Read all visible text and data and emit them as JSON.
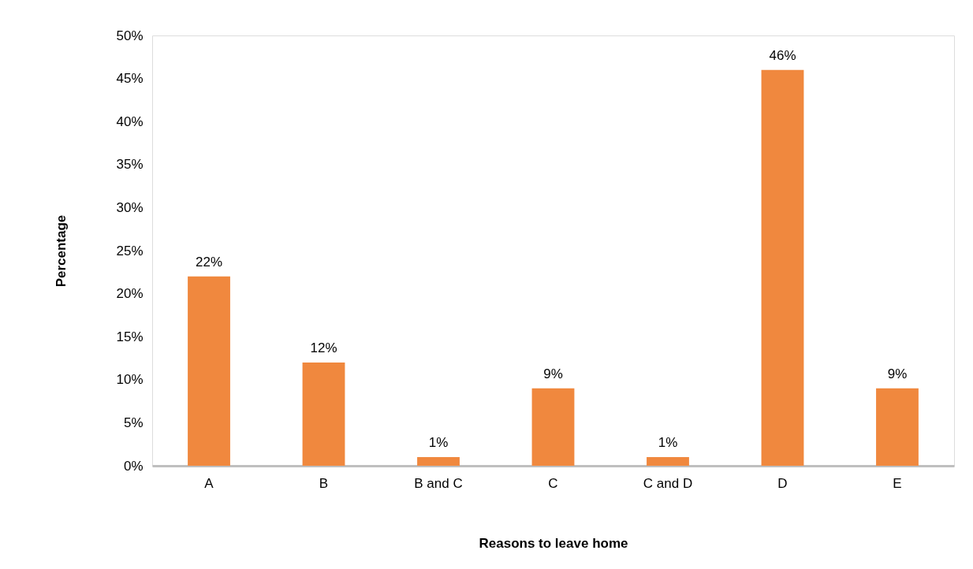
{
  "chart_data": {
    "type": "bar",
    "xlabel": "Reasons to leave home",
    "ylabel": "Percentage",
    "categories": [
      "A",
      "B",
      "B and C",
      "C",
      "C and D",
      "D",
      "E"
    ],
    "values": [
      22,
      12,
      1,
      9,
      1,
      46,
      9
    ],
    "value_labels": [
      "22%",
      "12%",
      "1%",
      "9%",
      "1%",
      "46%",
      "9%"
    ],
    "color": "#f0883e",
    "ylim": [
      0,
      50
    ],
    "yticks": [
      {
        "value": 0,
        "label": "0%"
      },
      {
        "value": 5,
        "label": "5%"
      },
      {
        "value": 10,
        "label": "10%"
      },
      {
        "value": 15,
        "label": "15%"
      },
      {
        "value": 20,
        "label": "20%"
      },
      {
        "value": 25,
        "label": "25%"
      },
      {
        "value": 30,
        "label": "30%"
      },
      {
        "value": 35,
        "label": "35%"
      },
      {
        "value": 40,
        "label": "40%"
      },
      {
        "value": 45,
        "label": "45%"
      },
      {
        "value": 50,
        "label": "50%"
      }
    ],
    "grid": false
  }
}
